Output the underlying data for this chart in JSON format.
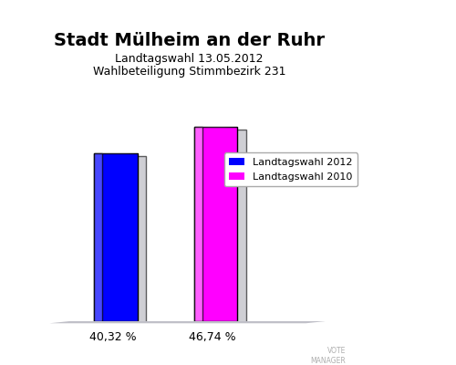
{
  "title": "Stadt Mülheim an der Ruhr",
  "subtitle1": "Landtagswahl 13.05.2012",
  "subtitle2": "Wahlbeteiligung Stimmbezirk 231",
  "values": [
    40.32,
    46.74
  ],
  "bar_colors": [
    "#0000ff",
    "#ff00ff"
  ],
  "bar_highlight_colors": [
    "#6666ff",
    "#ff88ff"
  ],
  "bar_labels": [
    "40,32 %",
    "46,74 %"
  ],
  "legend_labels": [
    "Landtagswahl 2012",
    "Landtagswahl 2010"
  ],
  "x_positions": [
    0.28,
    0.58
  ],
  "bar_width": 0.13,
  "ylim": [
    0,
    58
  ],
  "xlim": [
    0.0,
    1.0
  ],
  "background_color": "#e8e8ec",
  "plot_bg_color": "#e8e8ec",
  "title_fontsize": 14,
  "subtitle_fontsize": 9,
  "label_fontsize": 9,
  "legend_fontsize": 8
}
